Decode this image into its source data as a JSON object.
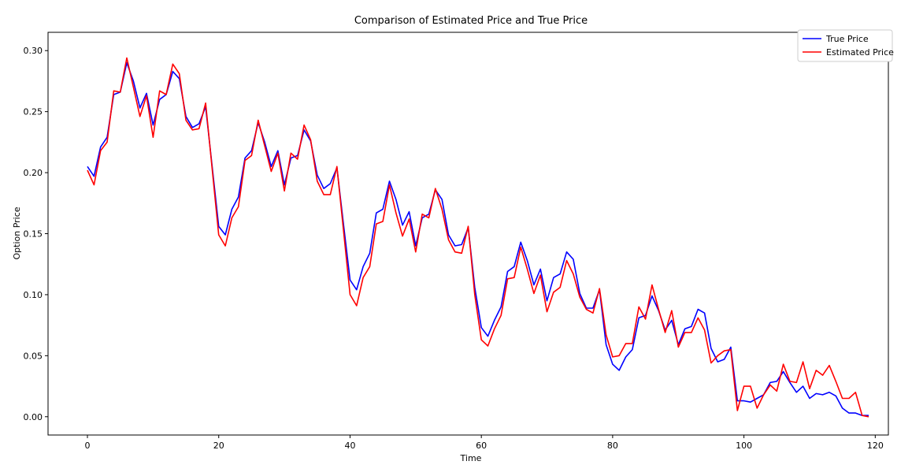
{
  "chart_data": {
    "type": "line",
    "title": "Comparison of Estimated Price and True Price",
    "xlabel": "Time",
    "ylabel": "Option Price",
    "xlim": [
      -6,
      122
    ],
    "ylim": [
      -0.015,
      0.315
    ],
    "x_ticks": [
      0,
      20,
      40,
      60,
      80,
      100,
      120
    ],
    "x_tick_labels": [
      "0",
      "20",
      "40",
      "60",
      "80",
      "100",
      "120"
    ],
    "y_ticks": [
      0.0,
      0.05,
      0.1,
      0.15,
      0.2,
      0.25,
      0.3
    ],
    "y_tick_labels": [
      "0.00",
      "0.05",
      "0.10",
      "0.15",
      "0.20",
      "0.25",
      "0.30"
    ],
    "grid": false,
    "legend_position": "top-right",
    "series": [
      {
        "name": "True Price",
        "color": "#0000ff",
        "x": [
          0,
          1,
          2,
          3,
          4,
          5,
          6,
          7,
          8,
          9,
          10,
          11,
          12,
          13,
          14,
          15,
          16,
          17,
          18,
          19,
          20,
          21,
          22,
          23,
          24,
          25,
          26,
          27,
          28,
          29,
          30,
          31,
          32,
          33,
          34,
          35,
          36,
          37,
          38,
          39,
          40,
          41,
          42,
          43,
          44,
          45,
          46,
          47,
          48,
          49,
          50,
          51,
          52,
          53,
          54,
          55,
          56,
          57,
          58,
          59,
          60,
          61,
          62,
          63,
          64,
          65,
          66,
          67,
          68,
          69,
          70,
          71,
          72,
          73,
          74,
          75,
          76,
          77,
          78,
          79,
          80,
          81,
          82,
          83,
          84,
          85,
          86,
          87,
          88,
          89,
          90,
          91,
          92,
          93,
          94,
          95,
          96,
          97,
          98,
          99,
          100,
          101,
          102,
          103,
          104,
          105,
          106,
          107,
          108,
          109,
          110,
          111,
          112,
          113,
          114,
          115,
          116,
          117,
          118,
          119
        ],
        "y": [
          0.205,
          0.197,
          0.221,
          0.229,
          0.264,
          0.266,
          0.29,
          0.275,
          0.253,
          0.265,
          0.239,
          0.26,
          0.264,
          0.283,
          0.277,
          0.246,
          0.237,
          0.24,
          0.254,
          0.205,
          0.156,
          0.149,
          0.17,
          0.18,
          0.212,
          0.218,
          0.241,
          0.225,
          0.205,
          0.218,
          0.19,
          0.212,
          0.214,
          0.235,
          0.226,
          0.198,
          0.187,
          0.191,
          0.204,
          0.158,
          0.112,
          0.104,
          0.123,
          0.134,
          0.167,
          0.17,
          0.193,
          0.178,
          0.157,
          0.168,
          0.14,
          0.163,
          0.166,
          0.186,
          0.178,
          0.149,
          0.14,
          0.141,
          0.155,
          0.106,
          0.073,
          0.066,
          0.079,
          0.09,
          0.119,
          0.123,
          0.143,
          0.128,
          0.108,
          0.121,
          0.095,
          0.114,
          0.117,
          0.135,
          0.129,
          0.101,
          0.089,
          0.089,
          0.104,
          0.059,
          0.043,
          0.038,
          0.049,
          0.055,
          0.081,
          0.083,
          0.099,
          0.087,
          0.071,
          0.079,
          0.059,
          0.072,
          0.074,
          0.088,
          0.085,
          0.056,
          0.045,
          0.047,
          0.057,
          0.013,
          0.013,
          0.012,
          0.015,
          0.018,
          0.028,
          0.029,
          0.037,
          0.028,
          0.02,
          0.025,
          0.015,
          0.019,
          0.018,
          0.02,
          0.017,
          0.007,
          0.003,
          0.003,
          0.001,
          0.001
        ]
      },
      {
        "name": "Estimated Price",
        "color": "#ff0000",
        "x": [
          0,
          1,
          2,
          3,
          4,
          5,
          6,
          7,
          8,
          9,
          10,
          11,
          12,
          13,
          14,
          15,
          16,
          17,
          18,
          19,
          20,
          21,
          22,
          23,
          24,
          25,
          26,
          27,
          28,
          29,
          30,
          31,
          32,
          33,
          34,
          35,
          36,
          37,
          38,
          39,
          40,
          41,
          42,
          43,
          44,
          45,
          46,
          47,
          48,
          49,
          50,
          51,
          52,
          53,
          54,
          55,
          56,
          57,
          58,
          59,
          60,
          61,
          62,
          63,
          64,
          65,
          66,
          67,
          68,
          69,
          70,
          71,
          72,
          73,
          74,
          75,
          76,
          77,
          78,
          79,
          80,
          81,
          82,
          83,
          84,
          85,
          86,
          87,
          88,
          89,
          90,
          91,
          92,
          93,
          94,
          95,
          96,
          97,
          98,
          99,
          100,
          101,
          102,
          103,
          104,
          105,
          106,
          107,
          108,
          109,
          110,
          111,
          112,
          113,
          114,
          115,
          116,
          117,
          118,
          119
        ],
        "y": [
          0.202,
          0.19,
          0.218,
          0.225,
          0.267,
          0.266,
          0.294,
          0.27,
          0.246,
          0.263,
          0.229,
          0.267,
          0.264,
          0.289,
          0.281,
          0.243,
          0.235,
          0.236,
          0.257,
          0.203,
          0.149,
          0.14,
          0.163,
          0.172,
          0.21,
          0.214,
          0.243,
          0.222,
          0.201,
          0.216,
          0.185,
          0.216,
          0.211,
          0.239,
          0.227,
          0.193,
          0.182,
          0.182,
          0.205,
          0.153,
          0.1,
          0.091,
          0.114,
          0.123,
          0.158,
          0.16,
          0.19,
          0.167,
          0.148,
          0.162,
          0.135,
          0.166,
          0.163,
          0.187,
          0.17,
          0.145,
          0.135,
          0.134,
          0.156,
          0.1,
          0.063,
          0.058,
          0.072,
          0.083,
          0.113,
          0.114,
          0.139,
          0.121,
          0.101,
          0.116,
          0.086,
          0.102,
          0.106,
          0.128,
          0.117,
          0.098,
          0.088,
          0.085,
          0.105,
          0.067,
          0.049,
          0.05,
          0.06,
          0.06,
          0.09,
          0.08,
          0.108,
          0.088,
          0.069,
          0.087,
          0.057,
          0.069,
          0.069,
          0.081,
          0.071,
          0.044,
          0.05,
          0.054,
          0.055,
          0.005,
          0.025,
          0.025,
          0.007,
          0.018,
          0.026,
          0.021,
          0.043,
          0.029,
          0.028,
          0.045,
          0.023,
          0.038,
          0.034,
          0.042,
          0.029,
          0.015,
          0.015,
          0.02,
          0.001,
          0.0
        ]
      }
    ]
  }
}
